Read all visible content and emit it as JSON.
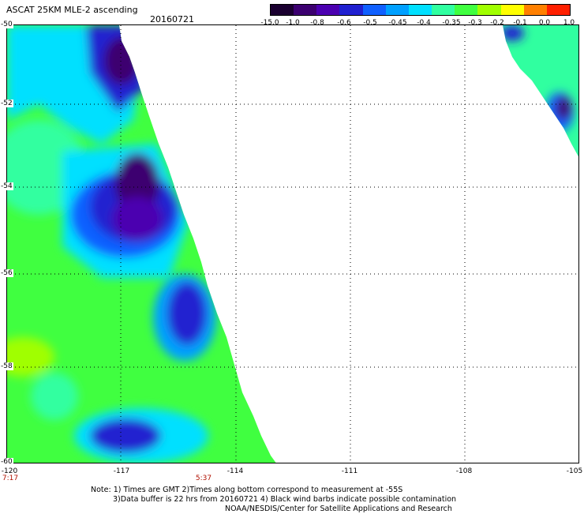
{
  "title": "ASCAT 25KM MLE-2 ascending",
  "date": "20160721",
  "colorbar": {
    "labels": [
      "-15.0",
      "-1.0",
      "-0.8",
      "-0.6",
      "-0.5",
      "-0.45",
      "-0.4",
      "-0.35",
      "-0.3",
      "-0.2",
      "-0.1",
      "0.0",
      "1.0"
    ],
    "colors": [
      "#1a0030",
      "#3c0070",
      "#4b00b0",
      "#2020d0",
      "#1060ff",
      "#00a0ff",
      "#00e0ff",
      "#30ffa0",
      "#40ff40",
      "#a0ff00",
      "#ffff00",
      "#ff8000",
      "#ff2000"
    ]
  },
  "map": {
    "lat_labels": [
      "-50",
      "-52",
      "-54",
      "-56",
      "-58",
      "-60"
    ],
    "lon_labels": [
      "-120",
      "-117",
      "-114",
      "-111",
      "-108",
      "-105"
    ],
    "time_labels": [
      "7:17",
      "5:37"
    ],
    "water_color": "#ffffff",
    "grid": true
  },
  "note": {
    "line1": "Note: 1) Times are GMT 2)Times along bottom correspond to measurement at -55S",
    "line2": "3)Data buffer is 22 hrs from 20160721 4) Black wind barbs indicate possible contamination",
    "line3": "NOAA/NESDIS/Center for Satellite Applications and Research"
  }
}
